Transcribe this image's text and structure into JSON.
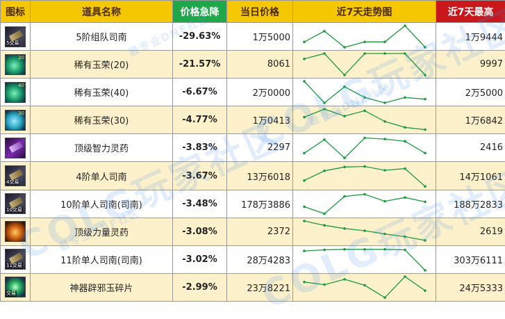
{
  "headers": {
    "icon": "图标",
    "name": "道具名称",
    "drop": "价格急降",
    "today": "当日价格",
    "trend": "近7天走势图",
    "high": "近7天最高"
  },
  "watermark": {
    "main": "COLG玩家社区",
    "sub": "最专业DNF社区"
  },
  "rows": [
    {
      "icon": "scroll-icon",
      "icon_level": "",
      "badge": "5交易",
      "name": "5阶组队司南",
      "drop": "-29.63%",
      "today": "1万5000",
      "high": "1万9444",
      "trend": [
        3,
        1,
        4,
        3,
        3,
        0,
        4
      ]
    },
    {
      "icon": "jade-icon",
      "icon_level": "20",
      "badge": "",
      "name": "稀有玉荣(20)",
      "drop": "-21.57%",
      "today": "8061",
      "high": "9997",
      "trend": [
        1,
        0,
        4,
        0,
        0,
        0,
        4
      ]
    },
    {
      "icon": "jade-icon",
      "icon_level": "40",
      "badge": "",
      "name": "稀有玉荣(40)",
      "drop": "-6.67%",
      "today": "2万0000",
      "high": "2万5000",
      "trend": [
        0,
        4,
        1,
        3,
        4,
        3,
        3.3
      ]
    },
    {
      "icon": "jade-blue-icon",
      "icon_level": "30",
      "badge": "",
      "name": "稀有玉荣(30)",
      "drop": "-4.77%",
      "today": "1万0413",
      "high": "1万6842",
      "trend": [
        1.5,
        0,
        1.3,
        0.3,
        2.3,
        3.4,
        3.8
      ]
    },
    {
      "icon": "scroll-purple-icon",
      "icon_level": "",
      "badge": "",
      "name": "顶级智力灵药",
      "drop": "-3.83%",
      "today": "2297",
      "high": "2416",
      "trend": [
        3,
        0.5,
        3.9,
        0.2,
        0.4,
        0.8,
        3
      ]
    },
    {
      "icon": "scroll-icon",
      "icon_level": "",
      "badge": "4交易",
      "name": "4阶单人司南",
      "drop": "-3.67%",
      "today": "13万6018",
      "high": "14万1061",
      "trend": [
        2.8,
        1,
        0.3,
        0.2,
        0.9,
        0.6,
        3.9
      ]
    },
    {
      "icon": "scroll-icon",
      "icon_level": "",
      "badge": "10交易",
      "name": "10阶单人司南(司南)",
      "drop": "-3.48%",
      "today": "178万3886",
      "high": "188万2833",
      "trend": [
        2.5,
        3.8,
        0.6,
        0.2,
        1.5,
        0.8,
        1.6
      ]
    },
    {
      "icon": "potion-orange-icon",
      "icon_level": "",
      "badge": "",
      "name": "顶级力量灵药",
      "drop": "-3.08%",
      "today": "2372",
      "high": "2619",
      "trend": [
        0,
        0.8,
        1.4,
        1.8,
        2.4,
        2.9,
        3.6
      ]
    },
    {
      "icon": "scroll-icon",
      "icon_level": "",
      "badge": "11交易",
      "name": "11阶单人司南(司南)",
      "drop": "-3.02%",
      "today": "28万4283",
      "high": "303万6111",
      "trend": [
        0.4,
        0.2,
        0.1,
        0.1,
        0.1,
        0.2,
        4
      ]
    },
    {
      "icon": "fragment-icon",
      "icon_level": "",
      "badge": "交易",
      "name": "神器辟邪玉碎片",
      "drop": "-2.99%",
      "today": "23万8221",
      "high": "24万5333",
      "trend": [
        1,
        1.5,
        0.5,
        1.6,
        3.9,
        0,
        2.6
      ]
    }
  ]
}
